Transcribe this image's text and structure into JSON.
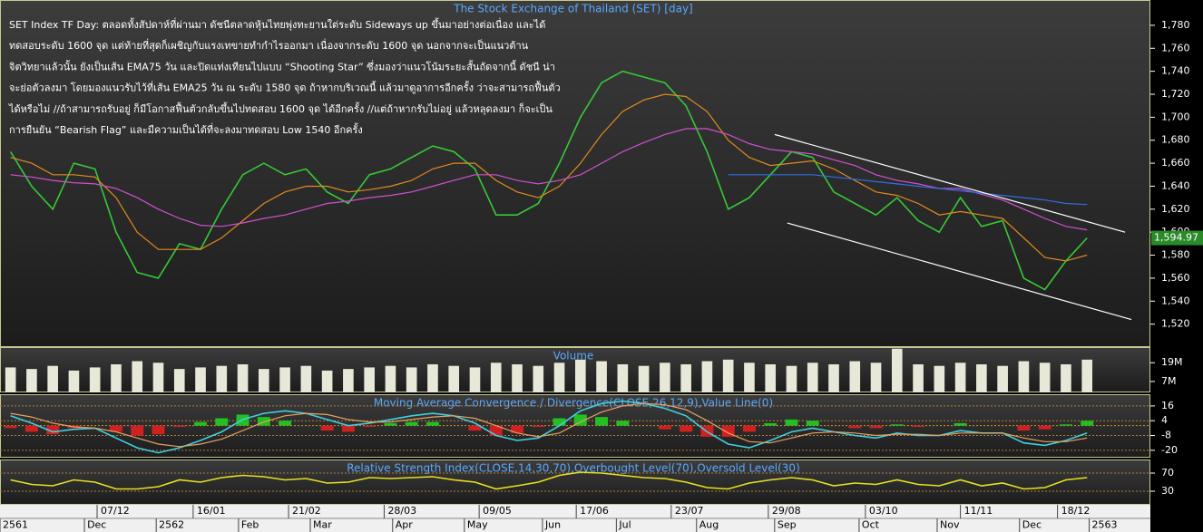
{
  "chart_data": [
    {
      "type": "line",
      "title": "The Stock Exchange of Thailand (SET) [day]",
      "annotation": [
        "SET Index TF Day: ตลอดทั้งสัปดาห์ที่ผ่านมา ดัชนีตลาดหุ้นไทยพุ่งทะยานใต่ระดับ Sideways up ขึ้นมาอย่างต่อเนื่อง และได้",
        "ทดสอบระดับ 1600 จุด แต่ท้ายที่สุดก็เผชิญกับแรงเทขายทำกำไรออกมา เนื่องจากระดับ 1600 จุด นอกจากจะเป็นแนวต้าน",
        "จิตวิทยาแล้วนั้น ยังเป็นเส้น EMA75 วัน และปิดแท่งเทียนไปแบบ “Shooting Star” ซึ่งมองว่าแนวโน้มระยะสั้นถัดจากนี้ ดัชนี น่า",
        "จะย่อตัวลงมา โดยมองแนวรับไว้ที่เส้น EMA25 วัน ณ ระดับ 1580 จุด ถ้าหากบริเวณนี้ แล้วมาดูอาการอีกครั้ง ว่าจะสามารถฟื้นตัว",
        "ได้หรือไม่ //ถ้าสามารถรับอยู่ ก็มีโอกาสฟื้นตัวกลับขึ้นไปทดสอบ 1600 จุด ได้อีกครั้ง //แต่ถ้าหากรับไม่อยู่ แล้วหลุดลงมา ก็จะเป็น",
        "การยืนยัน “Bearish Flag” และมีความเป็นได้ที่จะลงมาทดสอบ Low 1540 อีกครั้ง"
      ],
      "xlim": [
        0,
        54.5
      ],
      "ylim": [
        1500,
        1802
      ],
      "yticks": [
        {
          "value": 1520,
          "label": "1,520"
        },
        {
          "value": 1540,
          "label": "1,540"
        },
        {
          "value": 1560,
          "label": "1,560"
        },
        {
          "value": 1580,
          "label": "1,580"
        },
        {
          "value": 1600,
          "label": "1,600"
        },
        {
          "value": 1620,
          "label": "1,620"
        },
        {
          "value": 1640,
          "label": "1,640"
        },
        {
          "value": 1660,
          "label": "1,660"
        },
        {
          "value": 1680,
          "label": "1,680"
        },
        {
          "value": 1700,
          "label": "1,700"
        },
        {
          "value": 1720,
          "label": "1,720"
        },
        {
          "value": 1740,
          "label": "1,740"
        },
        {
          "value": 1760,
          "label": "1,760"
        },
        {
          "value": 1780,
          "label": "1,780"
        }
      ],
      "series": [
        {
          "color": "#36c936",
          "values": [
            1670,
            1640,
            1620,
            1660,
            1655,
            1600,
            1565,
            1560,
            1590,
            1585,
            1620,
            1650,
            1660,
            1650,
            1655,
            1635,
            1625,
            1650,
            1655,
            1665,
            1675,
            1670,
            1655,
            1615,
            1615,
            1625,
            1660,
            1700,
            1730,
            1740,
            1735,
            1730,
            1710,
            1670,
            1620,
            1630,
            1650,
            1670,
            1665,
            1635,
            1625,
            1615,
            1630,
            1610,
            1600,
            1630,
            1605,
            1610,
            1560,
            1550,
            1575,
            1595
          ]
        },
        {
          "color": "#e08a1e",
          "values": [
            1665,
            1660,
            1650,
            1650,
            1648,
            1630,
            1600,
            1585,
            1585,
            1585,
            1595,
            1610,
            1625,
            1635,
            1640,
            1640,
            1635,
            1637,
            1640,
            1645,
            1655,
            1660,
            1660,
            1645,
            1635,
            1630,
            1640,
            1660,
            1685,
            1705,
            1715,
            1720,
            1718,
            1705,
            1680,
            1665,
            1658,
            1660,
            1662,
            1655,
            1645,
            1635,
            1632,
            1625,
            1615,
            1618,
            1615,
            1612,
            1595,
            1578,
            1575,
            1580
          ]
        },
        {
          "color": "#d050d0",
          "values": [
            1650,
            1648,
            1645,
            1643,
            1642,
            1638,
            1630,
            1620,
            1612,
            1606,
            1605,
            1608,
            1612,
            1615,
            1620,
            1625,
            1627,
            1630,
            1632,
            1635,
            1640,
            1645,
            1650,
            1650,
            1645,
            1642,
            1645,
            1650,
            1660,
            1670,
            1678,
            1685,
            1690,
            1690,
            1685,
            1677,
            1672,
            1670,
            1668,
            1663,
            1658,
            1650,
            1645,
            1642,
            1638,
            1638,
            1633,
            1628,
            1620,
            1612,
            1605,
            1602
          ]
        },
        {
          "color": "#2f6fe0",
          "values": [
            null,
            null,
            null,
            null,
            null,
            null,
            null,
            null,
            null,
            null,
            null,
            null,
            null,
            null,
            null,
            null,
            null,
            null,
            null,
            null,
            null,
            null,
            null,
            null,
            null,
            null,
            null,
            null,
            null,
            null,
            null,
            null,
            null,
            null,
            1650,
            1650,
            1650,
            1650,
            1650,
            1648,
            1646,
            1644,
            1642,
            1640,
            1638,
            1636,
            1634,
            1632,
            1630,
            1628,
            1625,
            1624
          ]
        }
      ],
      "trendlines": [
        {
          "x": [
            36.7,
            53.3
          ],
          "y": [
            1685,
            1600
          ]
        },
        {
          "x": [
            37.3,
            53.6
          ],
          "y": [
            1608,
            1524
          ]
        }
      ],
      "last_price": {
        "value": 1594.97,
        "label": "1,594.97"
      }
    },
    {
      "type": "bar",
      "title": "Volume",
      "color": "#e8e8d8",
      "xlim": [
        0,
        54.5
      ],
      "ylim": [
        0,
        29
      ],
      "yticks": [
        {
          "value": 7,
          "label": "7M"
        },
        {
          "value": 19,
          "label": "19M"
        }
      ],
      "values": [
        16,
        15,
        17,
        14,
        16,
        18,
        20,
        19,
        15,
        16,
        17,
        18,
        15,
        16,
        17,
        14,
        15,
        16,
        17,
        16,
        18,
        17,
        16,
        19,
        18,
        17,
        19,
        21,
        20,
        18,
        17,
        19,
        18,
        20,
        21,
        19,
        18,
        17,
        19,
        18,
        20,
        19,
        28,
        18,
        17,
        19,
        18,
        17,
        20,
        19,
        18,
        21
      ]
    },
    {
      "type": "line",
      "title": "Moving Average Convergence / Divergence(CLOSE,26,12,9),Value Line(0)",
      "xlim": [
        0,
        54.5
      ],
      "ylim": [
        -26,
        25.5
      ],
      "yticks": [
        -20,
        -8,
        4,
        16
      ],
      "zero_line": 0,
      "histogram": {
        "up_color": "#22c022",
        "down_color": "#d02020",
        "values": [
          -2,
          -5,
          -7,
          -2,
          0,
          -5,
          -8,
          -7,
          -1,
          3,
          6,
          9,
          7,
          4,
          0,
          -4,
          -5,
          -1,
          2,
          3,
          3,
          0,
          -4,
          -8,
          -6,
          -1,
          6,
          9,
          7,
          4,
          0,
          -3,
          -5,
          -9,
          -9,
          -5,
          2,
          5,
          4,
          0,
          -2,
          -2,
          1,
          -1,
          0,
          2,
          0,
          0,
          -4,
          -3,
          1,
          4
        ]
      },
      "series": [
        {
          "color": "#40d0e0",
          "values": [
            8,
            2,
            -5,
            -3,
            -2,
            -10,
            -18,
            -22,
            -18,
            -12,
            -5,
            5,
            10,
            12,
            10,
            5,
            0,
            2,
            5,
            8,
            10,
            8,
            2,
            -8,
            -12,
            -10,
            0,
            12,
            18,
            20,
            18,
            14,
            8,
            -5,
            -15,
            -18,
            -12,
            -5,
            -2,
            -5,
            -8,
            -10,
            -6,
            -8,
            -8,
            -4,
            -6,
            -6,
            -14,
            -16,
            -12,
            -6
          ]
        },
        {
          "color": "#e8a060",
          "values": [
            10,
            7,
            2,
            -1,
            -2,
            -5,
            -10,
            -15,
            -17,
            -15,
            -11,
            -4,
            3,
            8,
            10,
            9,
            5,
            3,
            3,
            5,
            7,
            8,
            6,
            0,
            -6,
            -9,
            -6,
            3,
            11,
            16,
            18,
            17,
            13,
            4,
            -6,
            -13,
            -14,
            -10,
            -6,
            -5,
            -6,
            -8,
            -7,
            -7,
            -8,
            -6,
            -6,
            -6,
            -10,
            -13,
            -13,
            -10
          ]
        }
      ]
    },
    {
      "type": "line",
      "title": "Relative Strength Index(CLOSE,14,30,70),Overbought Level(70),Oversold Level(30)",
      "xlim": [
        0,
        54.5
      ],
      "ylim": [
        0,
        100
      ],
      "yticks": [
        30,
        70
      ],
      "series": [
        {
          "color": "#e8e020",
          "values": [
            55,
            45,
            42,
            55,
            50,
            35,
            35,
            40,
            55,
            50,
            60,
            65,
            62,
            55,
            58,
            48,
            50,
            60,
            58,
            60,
            62,
            55,
            50,
            35,
            42,
            50,
            65,
            72,
            70,
            65,
            60,
            58,
            50,
            38,
            35,
            48,
            55,
            60,
            55,
            42,
            48,
            45,
            55,
            45,
            42,
            55,
            42,
            48,
            35,
            38,
            55,
            60
          ]
        }
      ],
      "xticks": [
        {
          "value": 4.6,
          "label": "07/12"
        },
        {
          "value": 9.15,
          "label": "16/01"
        },
        {
          "value": 13.67,
          "label": "21/02"
        },
        {
          "value": 18.2,
          "label": "28/03"
        },
        {
          "value": 22.7,
          "label": "09/05"
        },
        {
          "value": 27.3,
          "label": "17/06"
        },
        {
          "value": 31.8,
          "label": "23/07"
        },
        {
          "value": 36.4,
          "label": "29/08"
        },
        {
          "value": 41.0,
          "label": "03/10"
        },
        {
          "value": 45.5,
          "label": "11/11"
        },
        {
          "value": 50.1,
          "label": "18/12"
        }
      ],
      "xticks2": [
        {
          "value": 0,
          "label": "2561"
        },
        {
          "value": 4.0,
          "label": "Dec"
        },
        {
          "value": 7.4,
          "label": "2562"
        },
        {
          "value": 11.3,
          "label": "Feb"
        },
        {
          "value": 14.7,
          "label": "Mar"
        },
        {
          "value": 18.6,
          "label": "Apr"
        },
        {
          "value": 22.0,
          "label": "May"
        },
        {
          "value": 25.7,
          "label": "Jun"
        },
        {
          "value": 29.2,
          "label": "Jul"
        },
        {
          "value": 33.0,
          "label": "Aug"
        },
        {
          "value": 36.7,
          "label": "Sep"
        },
        {
          "value": 40.7,
          "label": "Oct"
        },
        {
          "value": 44.4,
          "label": "Nov"
        },
        {
          "value": 48.3,
          "label": "Dec"
        },
        {
          "value": 51.6,
          "label": "2563"
        }
      ]
    }
  ]
}
